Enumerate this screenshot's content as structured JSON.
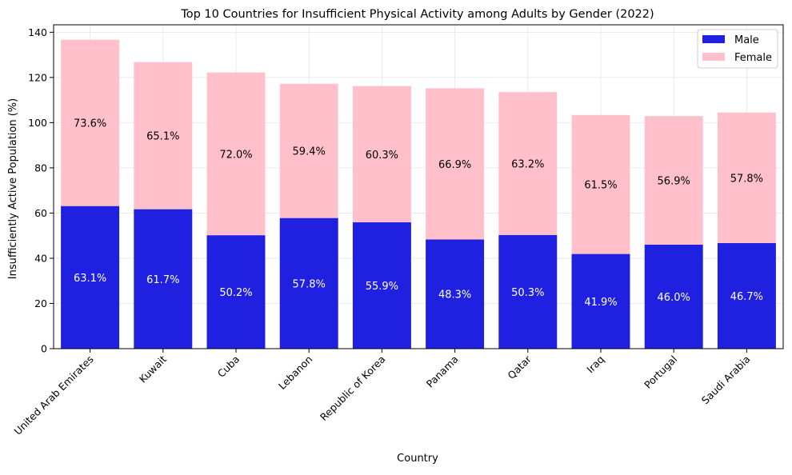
{
  "chart_data": {
    "type": "bar",
    "stacked": true,
    "title": "Top 10 Countries for Insufficient Physical Activity among Adults by Gender (2022)",
    "xlabel": "Country",
    "ylabel": "Insufficiently Active Population (%)",
    "ylim": [
      0,
      143.3
    ],
    "yticks": [
      0,
      20,
      40,
      60,
      80,
      100,
      120,
      140
    ],
    "grid": true,
    "legend_position": "top-right",
    "categories": [
      "United Arab Emirates",
      "Kuwait",
      "Cuba",
      "Lebanon",
      "Republic of Korea",
      "Panama",
      "Qatar",
      "Iraq",
      "Portugal",
      "Saudi Arabia"
    ],
    "series": [
      {
        "name": "Male",
        "color": "#0000ff",
        "values": [
          63.1,
          61.7,
          50.2,
          57.8,
          55.9,
          48.3,
          50.3,
          41.9,
          46.0,
          46.7
        ],
        "labels": [
          "63.1%",
          "61.7%",
          "50.2%",
          "57.8%",
          "55.9%",
          "48.3%",
          "50.3%",
          "41.9%",
          "46.0%",
          "46.7%"
        ]
      },
      {
        "name": "Female",
        "color": "#ffc0cb",
        "values": [
          73.6,
          65.1,
          72.0,
          59.4,
          60.3,
          66.9,
          63.2,
          61.5,
          56.9,
          57.8
        ],
        "labels": [
          "73.6%",
          "65.1%",
          "72.0%",
          "59.4%",
          "60.3%",
          "66.9%",
          "63.2%",
          "61.5%",
          "56.9%",
          "57.8%"
        ]
      }
    ]
  }
}
